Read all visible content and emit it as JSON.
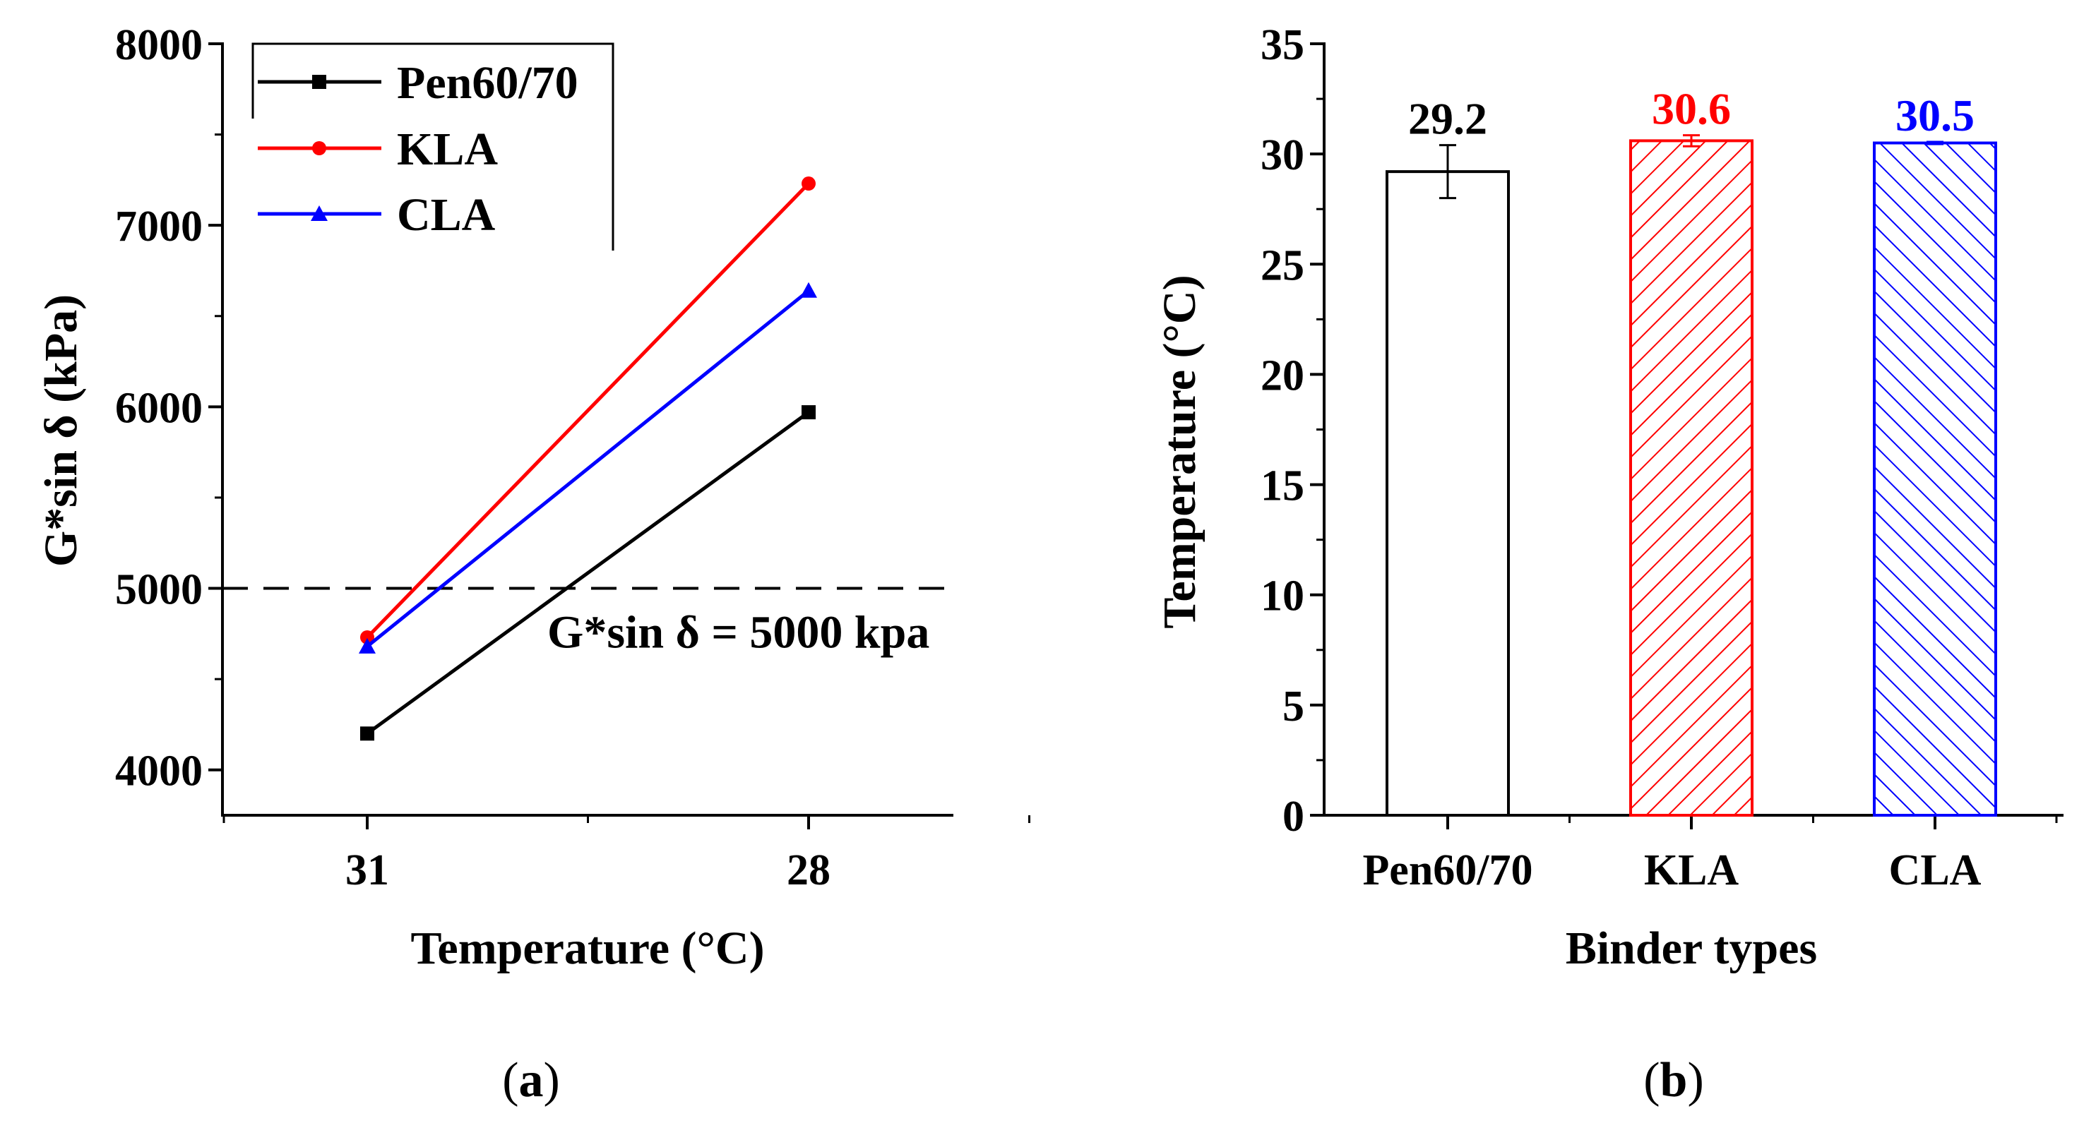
{
  "chart_data": [
    {
      "type": "line",
      "panel_label": [
        "(",
        "a",
        ")"
      ],
      "xlabel": "Temperature (°C)",
      "ylabel": "G*sin δ (kPa)",
      "x_categories": [
        "31",
        "28"
      ],
      "ylim": [
        3750,
        8000
      ],
      "yticks": [
        "4000",
        "5000",
        "6000",
        "7000",
        "8000"
      ],
      "series": [
        {
          "name": "Pen60/70",
          "color": "#000000",
          "marker": "square",
          "values": [
            4200,
            5970
          ]
        },
        {
          "name": "KLA",
          "color": "#ff0000",
          "marker": "circle",
          "values": [
            4730,
            7230
          ]
        },
        {
          "name": "CLA",
          "color": "#0000ff",
          "marker": "triangle",
          "values": [
            4680,
            6640
          ]
        }
      ],
      "reference_line": {
        "y": 5000,
        "style": "dashed",
        "label": "G*sin δ = 5000 kpa"
      },
      "legend_position": "top-left"
    },
    {
      "type": "bar",
      "panel_label": [
        "(",
        "b",
        ")"
      ],
      "xlabel": "Binder types",
      "ylabel": "Temperature (°C)",
      "categories": [
        "Pen60/70",
        "KLA",
        "CLA"
      ],
      "values": [
        29.2,
        30.6,
        30.5
      ],
      "errors": [
        1.2,
        0.25,
        0.05
      ],
      "value_labels": [
        "29.2",
        "30.6",
        "30.5"
      ],
      "colors": [
        "#000000",
        "#ff0000",
        "#0000ff"
      ],
      "fills": [
        "none",
        "hatch-forward",
        "hatch-backward"
      ],
      "ylim": [
        0,
        35
      ],
      "yticks": [
        "0",
        "5",
        "10",
        "15",
        "20",
        "25",
        "30",
        "35"
      ]
    }
  ]
}
